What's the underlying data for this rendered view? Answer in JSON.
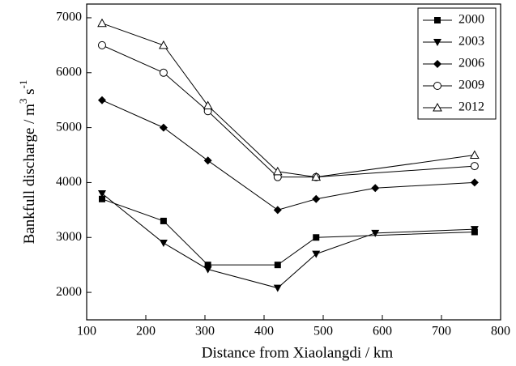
{
  "chart_data": {
    "type": "line",
    "xlabel": "Distance from Xiaolangdi / km",
    "ylabel_parts": [
      "Bankfull discharge / m",
      "3",
      " s",
      "-1"
    ],
    "xlim": [
      100,
      800
    ],
    "xticks": [
      100,
      200,
      300,
      400,
      500,
      600,
      700,
      800
    ],
    "ylim": [
      1500,
      7250
    ],
    "yticks": [
      2000,
      3000,
      4000,
      5000,
      6000,
      7000
    ],
    "legend": "top-right",
    "series": [
      {
        "name": "2000",
        "color": "#000000",
        "marker": "square",
        "x": [
          126,
          230,
          305,
          423,
          488,
          756
        ],
        "values": [
          3700,
          3300,
          2500,
          2500,
          3000,
          3100
        ]
      },
      {
        "name": "2003",
        "color": "#000000",
        "marker": "triangle-down",
        "x": [
          126,
          230,
          305,
          423,
          488,
          588,
          756
        ],
        "values": [
          3800,
          2900,
          2420,
          2080,
          2700,
          3080,
          3150
        ]
      },
      {
        "name": "2006",
        "color": "#000000",
        "marker": "diamond",
        "x": [
          126,
          230,
          305,
          423,
          488,
          588,
          756
        ],
        "values": [
          5500,
          5000,
          4400,
          3500,
          3700,
          3900,
          4000
        ]
      },
      {
        "name": "2009",
        "color": "#000000",
        "marker": "circle-open",
        "x": [
          126,
          230,
          305,
          423,
          488,
          756
        ],
        "values": [
          6500,
          6000,
          5300,
          4100,
          4100,
          4300
        ]
      },
      {
        "name": "2012",
        "color": "#000000",
        "marker": "triangle-open",
        "x": [
          126,
          230,
          305,
          423,
          488,
          756
        ],
        "values": [
          6900,
          6500,
          5400,
          4200,
          4100,
          4500
        ]
      }
    ]
  }
}
